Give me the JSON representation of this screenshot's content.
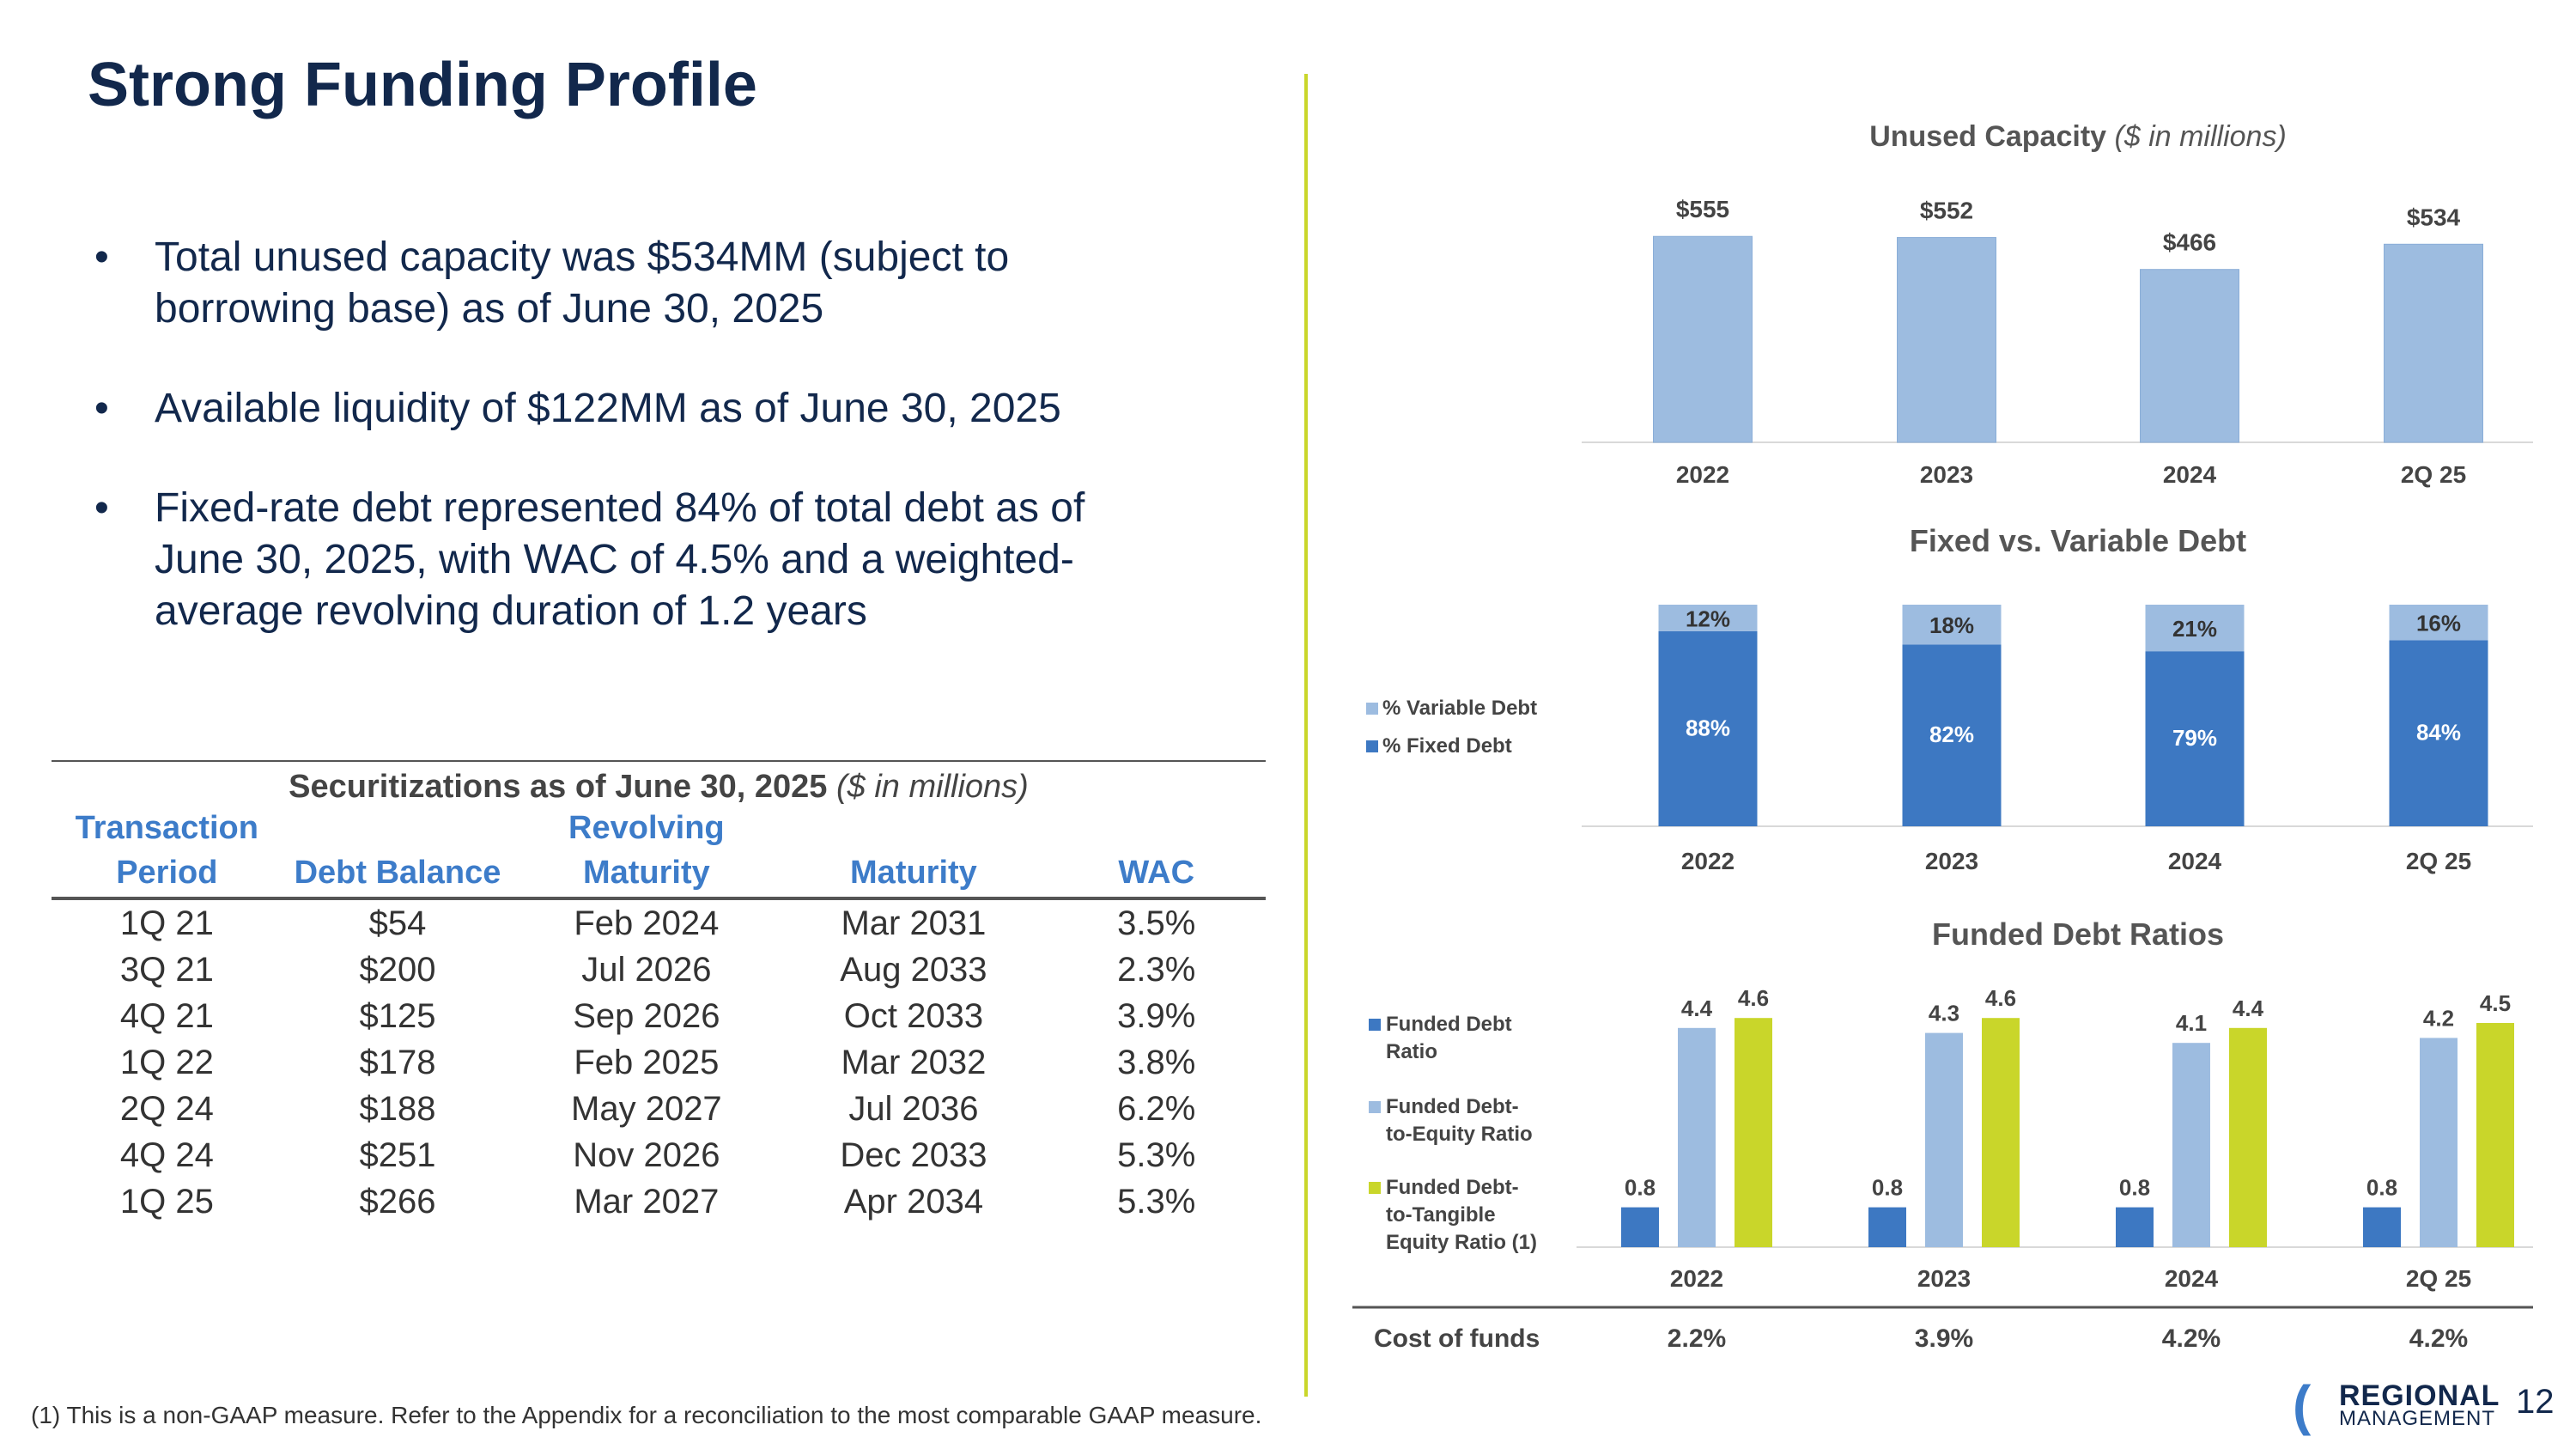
{
  "page": {
    "title": "Strong Funding Profile",
    "bullets": [
      "Total unused capacity was $534MM (subject to borrowing base) as of June 30, 2025",
      "Available liquidity of $122MM as of June 30, 2025",
      "Fixed-rate debt represented 84% of total debt as of June 30, 2025, with WAC of 4.5% and a weighted-average revolving duration of 1.2 years"
    ],
    "footnote": "(1) This is a non-GAAP measure. Refer to the Appendix for a reconciliation to the most comparable GAAP measure.",
    "page_number": "12",
    "logo": {
      "line1": "REGIONAL",
      "line2": "MANAGEMENT"
    }
  },
  "colors": {
    "light_blue": "#9dbce0",
    "dark_blue": "#3d78c2",
    "lime": "#c9d62a",
    "navy": "#12284c"
  },
  "table": {
    "caption": "Securitizations as of June 30, 2025",
    "caption_note": "($ in millions)",
    "headers": [
      "Transaction Period",
      "Debt Balance",
      "Revolving Maturity",
      "Maturity",
      "WAC"
    ],
    "rows": [
      [
        "1Q 21",
        "$54",
        "Feb 2024",
        "Mar 2031",
        "3.5%"
      ],
      [
        "3Q 21",
        "$200",
        "Jul 2026",
        "Aug 2033",
        "2.3%"
      ],
      [
        "4Q 21",
        "$125",
        "Sep 2026",
        "Oct 2033",
        "3.9%"
      ],
      [
        "1Q 22",
        "$178",
        "Feb 2025",
        "Mar 2032",
        "3.8%"
      ],
      [
        "2Q 24",
        "$188",
        "May 2027",
        "Jul 2036",
        "6.2%"
      ],
      [
        "4Q 24",
        "$251",
        "Nov 2026",
        "Dec 2033",
        "5.3%"
      ],
      [
        "1Q 25",
        "$266",
        "Mar 2027",
        "Apr 2034",
        "5.3%"
      ]
    ]
  },
  "chart_data": [
    {
      "type": "bar",
      "title": "Unused Capacity",
      "subtitle": "($ in millions)",
      "categories": [
        "2022",
        "2023",
        "2024",
        "2Q 25"
      ],
      "values": [
        555,
        552,
        466,
        534
      ],
      "labels": [
        "$555",
        "$552",
        "$466",
        "$534"
      ],
      "ylim": [
        0,
        600
      ]
    },
    {
      "type": "bar",
      "stacked": true,
      "title": "Fixed vs. Variable Debt",
      "categories": [
        "2022",
        "2023",
        "2024",
        "2Q 25"
      ],
      "series": [
        {
          "name": "% Fixed Debt",
          "values": [
            88,
            82,
            79,
            84
          ],
          "labels": [
            "88%",
            "82%",
            "79%",
            "84%"
          ]
        },
        {
          "name": "% Variable Debt",
          "values": [
            12,
            18,
            21,
            16
          ],
          "labels": [
            "12%",
            "18%",
            "21%",
            "16%"
          ]
        }
      ],
      "legend": [
        "% Variable Debt",
        "% Fixed Debt"
      ],
      "ylim": [
        0,
        100
      ]
    },
    {
      "type": "bar",
      "title": "Funded Debt Ratios",
      "categories": [
        "2022",
        "2023",
        "2024",
        "2Q 25"
      ],
      "series": [
        {
          "name": "Funded Debt Ratio",
          "values": [
            0.8,
            0.8,
            0.8,
            0.8
          ]
        },
        {
          "name": "Funded Debt-to-Equity Ratio",
          "values": [
            4.4,
            4.3,
            4.1,
            4.2
          ]
        },
        {
          "name": "Funded Debt-to-Tangible Equity Ratio (1)",
          "values": [
            4.6,
            4.6,
            4.4,
            4.5
          ]
        }
      ],
      "legend": [
        "Funded Debt Ratio",
        "Funded Debt-to-Equity Ratio",
        "Funded Debt-to-Tangible Equity Ratio (1)"
      ],
      "ylim": [
        0,
        5
      ],
      "footer_row": {
        "label": "Cost of funds",
        "values": [
          "2.2%",
          "3.9%",
          "4.2%",
          "4.2%"
        ]
      }
    }
  ]
}
